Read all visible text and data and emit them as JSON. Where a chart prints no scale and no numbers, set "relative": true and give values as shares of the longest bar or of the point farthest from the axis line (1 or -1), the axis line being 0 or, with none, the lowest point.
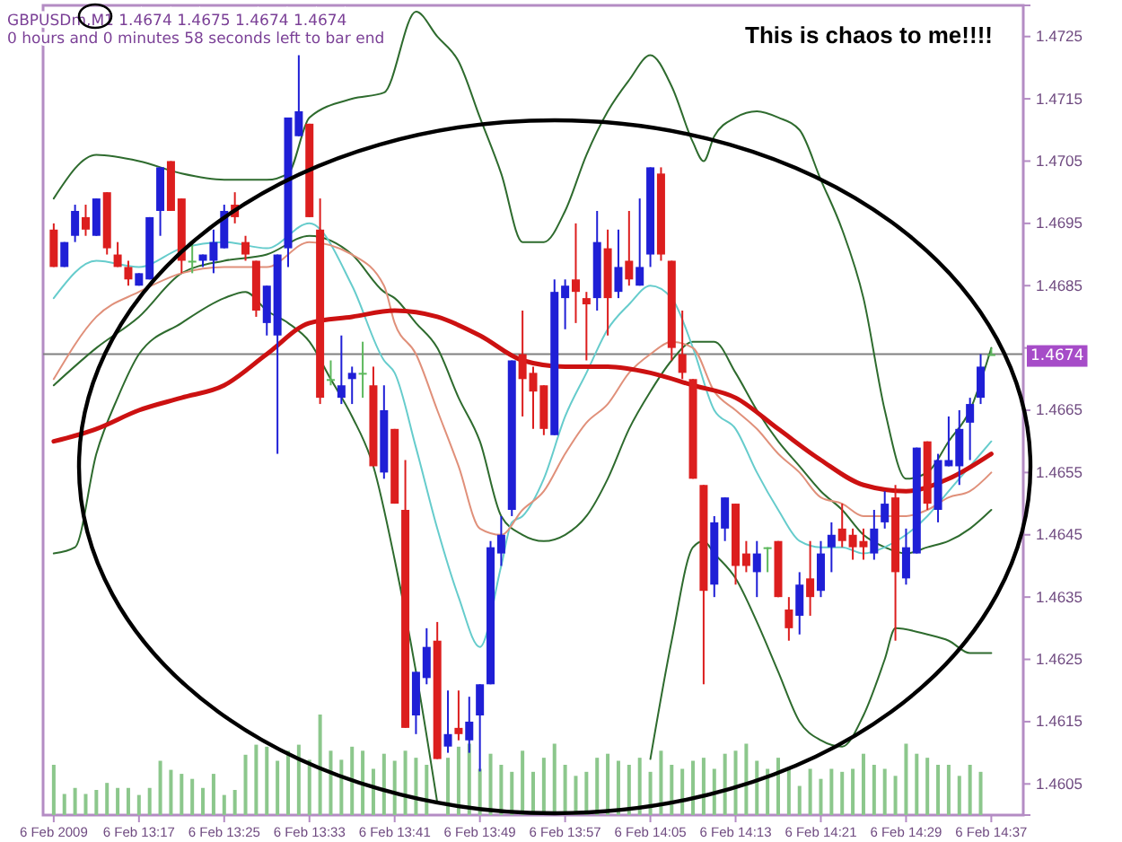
{
  "chart_data": [
    {
      "type": "candlestick",
      "title": "This is chaos to me!!!!",
      "subtitle": "GBPUSDm,M1 1.4674 1.4675 1.4674 1.4674",
      "annotations": [
        "0 hours and 0 minutes 58 seconds left to bar end"
      ],
      "x": [
        "2009-02-06T13:09",
        "2009-02-06T13:10",
        "2009-02-06T13:11",
        "2009-02-06T13:12",
        "2009-02-06T13:13",
        "2009-02-06T13:14",
        "2009-02-06T13:15",
        "2009-02-06T13:16",
        "2009-02-06T13:17",
        "2009-02-06T13:18",
        "2009-02-06T13:19",
        "2009-02-06T13:20",
        "2009-02-06T13:21",
        "2009-02-06T13:22",
        "2009-02-06T13:23",
        "2009-02-06T13:24",
        "2009-02-06T13:25",
        "2009-02-06T13:26",
        "2009-02-06T13:27",
        "2009-02-06T13:28",
        "2009-02-06T13:29",
        "2009-02-06T13:30",
        "2009-02-06T13:31",
        "2009-02-06T13:32",
        "2009-02-06T13:33",
        "2009-02-06T13:34",
        "2009-02-06T13:35",
        "2009-02-06T13:36",
        "2009-02-06T13:37",
        "2009-02-06T13:38",
        "2009-02-06T13:39",
        "2009-02-06T13:40",
        "2009-02-06T13:41",
        "2009-02-06T13:42",
        "2009-02-06T13:43",
        "2009-02-06T13:44",
        "2009-02-06T13:45",
        "2009-02-06T13:46",
        "2009-02-06T13:47",
        "2009-02-06T13:48",
        "2009-02-06T13:49",
        "2009-02-06T13:50",
        "2009-02-06T13:51",
        "2009-02-06T13:52",
        "2009-02-06T13:53",
        "2009-02-06T13:54",
        "2009-02-06T13:55",
        "2009-02-06T13:56",
        "2009-02-06T13:57",
        "2009-02-06T13:58",
        "2009-02-06T13:59",
        "2009-02-06T14:00",
        "2009-02-06T14:01",
        "2009-02-06T14:02",
        "2009-02-06T14:03",
        "2009-02-06T14:04",
        "2009-02-06T14:05",
        "2009-02-06T14:06",
        "2009-02-06T14:07",
        "2009-02-06T14:08",
        "2009-02-06T14:09",
        "2009-02-06T14:10",
        "2009-02-06T14:11",
        "2009-02-06T14:12",
        "2009-02-06T14:13",
        "2009-02-06T14:14",
        "2009-02-06T14:15",
        "2009-02-06T14:16",
        "2009-02-06T14:17",
        "2009-02-06T14:18",
        "2009-02-06T14:19",
        "2009-02-06T14:20",
        "2009-02-06T14:21",
        "2009-02-06T14:22",
        "2009-02-06T14:23",
        "2009-02-06T14:24",
        "2009-02-06T14:25",
        "2009-02-06T14:26",
        "2009-02-06T14:27",
        "2009-02-06T14:28",
        "2009-02-06T14:29",
        "2009-02-06T14:30",
        "2009-02-06T14:31",
        "2009-02-06T14:32",
        "2009-02-06T14:33",
        "2009-02-06T14:34",
        "2009-02-06T14:35",
        "2009-02-06T14:36",
        "2009-02-06T14:37"
      ],
      "ohlc": [
        [
          1.4694,
          1.4695,
          1.4688,
          1.4688
        ],
        [
          1.4688,
          1.4692,
          1.4688,
          1.4692
        ],
        [
          1.4693,
          1.4698,
          1.4692,
          1.4697
        ],
        [
          1.4696,
          1.4698,
          1.4693,
          1.4694
        ],
        [
          1.4693,
          1.4699,
          1.4693,
          1.4699
        ],
        [
          1.47,
          1.47,
          1.469,
          1.4691
        ],
        [
          1.469,
          1.4692,
          1.4688,
          1.4688
        ],
        [
          1.4688,
          1.4689,
          1.4685,
          1.4686
        ],
        [
          1.4685,
          1.4687,
          1.4685,
          1.4687
        ],
        [
          1.4686,
          1.4696,
          1.4686,
          1.4696
        ],
        [
          1.4697,
          1.4704,
          1.4693,
          1.4704
        ],
        [
          1.4705,
          1.4705,
          1.4697,
          1.4697
        ],
        [
          1.4699,
          1.4699,
          1.4687,
          1.4689
        ],
        [
          1.4689,
          1.4692,
          1.4687,
          1.4689
        ],
        [
          1.4689,
          1.469,
          1.4688,
          1.469
        ],
        [
          1.4689,
          1.4694,
          1.4687,
          1.4692
        ],
        [
          1.4691,
          1.4698,
          1.4691,
          1.4697
        ],
        [
          1.4698,
          1.47,
          1.4695,
          1.4696
        ],
        [
          1.4692,
          1.4693,
          1.4689,
          1.469
        ],
        [
          1.4689,
          1.4689,
          1.468,
          1.4681
        ],
        [
          1.4679,
          1.4685,
          1.4677,
          1.4685
        ],
        [
          1.4677,
          1.469,
          1.4658,
          1.469
        ],
        [
          1.4691,
          1.4712,
          1.4688,
          1.4712
        ],
        [
          1.4709,
          1.4722,
          1.4709,
          1.4713
        ],
        [
          1.4711,
          1.4711,
          1.4696,
          1.4696
        ],
        [
          1.4694,
          1.4699,
          1.4666,
          1.4667
        ],
        [
          1.467,
          1.4673,
          1.4669,
          1.467
        ],
        [
          1.4667,
          1.4677,
          1.4666,
          1.4669
        ],
        [
          1.467,
          1.4672,
          1.4666,
          1.4671
        ],
        [
          1.4671,
          1.4676,
          1.4667,
          1.4671
        ],
        [
          1.4669,
          1.4672,
          1.4656,
          1.4656
        ],
        [
          1.4655,
          1.4669,
          1.4654,
          1.4665
        ],
        [
          1.4662,
          1.4662,
          1.465,
          1.465
        ],
        [
          1.4649,
          1.4657,
          1.4614,
          1.4614
        ],
        [
          1.4616,
          1.4623,
          1.4613,
          1.4623
        ],
        [
          1.4622,
          1.463,
          1.4621,
          1.4627
        ],
        [
          1.4628,
          1.4631,
          1.4609,
          1.4609
        ],
        [
          1.4611,
          1.462,
          1.461,
          1.4613
        ],
        [
          1.4614,
          1.462,
          1.4612,
          1.4613
        ],
        [
          1.4612,
          1.4619,
          1.461,
          1.4615
        ],
        [
          1.4616,
          1.4621,
          1.4607,
          1.4621
        ],
        [
          1.4621,
          1.4644,
          1.4621,
          1.4643
        ],
        [
          1.4642,
          1.4648,
          1.464,
          1.4645
        ],
        [
          1.4649,
          1.4673,
          1.4648,
          1.4673
        ],
        [
          1.4674,
          1.4681,
          1.4664,
          1.467
        ],
        [
          1.4671,
          1.4672,
          1.4662,
          1.4668
        ],
        [
          1.4669,
          1.4669,
          1.4661,
          1.4662
        ],
        [
          1.4661,
          1.4686,
          1.4661,
          1.4684
        ],
        [
          1.4683,
          1.4686,
          1.4678,
          1.4685
        ],
        [
          1.4686,
          1.4695,
          1.4679,
          1.4684
        ],
        [
          1.4683,
          1.4684,
          1.4673,
          1.4682
        ],
        [
          1.4683,
          1.4697,
          1.4681,
          1.4692
        ],
        [
          1.4691,
          1.4694,
          1.4677,
          1.4683
        ],
        [
          1.4684,
          1.4694,
          1.4683,
          1.4688
        ],
        [
          1.4689,
          1.4697,
          1.4685,
          1.4686
        ],
        [
          1.4685,
          1.4699,
          1.4685,
          1.4688
        ],
        [
          1.469,
          1.4704,
          1.4688,
          1.4704
        ],
        [
          1.4703,
          1.4704,
          1.4689,
          1.469
        ],
        [
          1.4689,
          1.4689,
          1.4673,
          1.4675
        ],
        [
          1.4674,
          1.4681,
          1.467,
          1.4671
        ],
        [
          1.467,
          1.467,
          1.4654,
          1.4654
        ],
        [
          1.4653,
          1.4653,
          1.4621,
          1.4636
        ],
        [
          1.4637,
          1.4648,
          1.4635,
          1.4647
        ],
        [
          1.4646,
          1.4651,
          1.4644,
          1.4651
        ],
        [
          1.465,
          1.465,
          1.4637,
          1.464
        ],
        [
          1.4642,
          1.4644,
          1.4639,
          1.464
        ],
        [
          1.4639,
          1.4644,
          1.4635,
          1.4642
        ],
        [
          1.4643,
          1.4643,
          1.4639,
          1.4643
        ],
        [
          1.4644,
          1.4644,
          1.4635,
          1.4635
        ],
        [
          1.4633,
          1.4635,
          1.4628,
          1.463
        ],
        [
          1.4632,
          1.4639,
          1.4629,
          1.4637
        ],
        [
          1.4638,
          1.4644,
          1.4632,
          1.4635
        ],
        [
          1.4636,
          1.4644,
          1.4635,
          1.4642
        ],
        [
          1.4643,
          1.4647,
          1.4639,
          1.4645
        ],
        [
          1.4646,
          1.465,
          1.4643,
          1.4644
        ],
        [
          1.4645,
          1.4646,
          1.4641,
          1.4643
        ],
        [
          1.4644,
          1.4646,
          1.4641,
          1.4643
        ],
        [
          1.4642,
          1.4649,
          1.4641,
          1.4646
        ],
        [
          1.4647,
          1.4652,
          1.4646,
          1.465
        ],
        [
          1.4651,
          1.4653,
          1.4628,
          1.4639
        ],
        [
          1.4638,
          1.4646,
          1.4637,
          1.4643
        ],
        [
          1.4642,
          1.4659,
          1.4642,
          1.4659
        ],
        [
          1.466,
          1.466,
          1.4649,
          1.465
        ],
        [
          1.4649,
          1.4658,
          1.4647,
          1.4657
        ],
        [
          1.4656,
          1.4664,
          1.4656,
          1.4657
        ],
        [
          1.4656,
          1.4665,
          1.4653,
          1.4662
        ],
        [
          1.4663,
          1.4667,
          1.4657,
          1.4666
        ],
        [
          1.4667,
          1.4674,
          1.4666,
          1.4672
        ],
        [
          1.4674,
          1.4675,
          1.4674,
          1.4674
        ]
      ],
      "colors": [
        "#dc1e1e",
        "#1f1fd6",
        "#1f1fd6",
        "#dc1e1e",
        "#1f1fd6",
        "#dc1e1e",
        "#dc1e1e",
        "#dc1e1e",
        "#1f1fd6",
        "#1f1fd6",
        "#1f1fd6",
        "#dc1e1e",
        "#dc1e1e",
        "#5cb85c",
        "#1f1fd6",
        "#1f1fd6",
        "#1f1fd6",
        "#dc1e1e",
        "#dc1e1e",
        "#dc1e1e",
        "#1f1fd6",
        "#1f1fd6",
        "#1f1fd6",
        "#1f1fd6",
        "#dc1e1e",
        "#dc1e1e",
        "#5cb85c",
        "#1f1fd6",
        "#1f1fd6",
        "#5cb85c",
        "#dc1e1e",
        "#1f1fd6",
        "#dc1e1e",
        "#dc1e1e",
        "#1f1fd6",
        "#1f1fd6",
        "#dc1e1e",
        "#1f1fd6",
        "#dc1e1e",
        "#1f1fd6",
        "#1f1fd6",
        "#1f1fd6",
        "#1f1fd6",
        "#1f1fd6",
        "#dc1e1e",
        "#dc1e1e",
        "#dc1e1e",
        "#1f1fd6",
        "#1f1fd6",
        "#dc1e1e",
        "#dc1e1e",
        "#1f1fd6",
        "#dc1e1e",
        "#1f1fd6",
        "#dc1e1e",
        "#1f1fd6",
        "#1f1fd6",
        "#dc1e1e",
        "#dc1e1e",
        "#dc1e1e",
        "#dc1e1e",
        "#dc1e1e",
        "#1f1fd6",
        "#1f1fd6",
        "#dc1e1e",
        "#dc1e1e",
        "#1f1fd6",
        "#5cb85c",
        "#dc1e1e",
        "#dc1e1e",
        "#1f1fd6",
        "#dc1e1e",
        "#1f1fd6",
        "#1f1fd6",
        "#dc1e1e",
        "#dc1e1e",
        "#dc1e1e",
        "#1f1fd6",
        "#1f1fd6",
        "#dc1e1e",
        "#1f1fd6",
        "#1f1fd6",
        "#dc1e1e",
        "#1f1fd6",
        "#1f1fd6",
        "#1f1fd6",
        "#1f1fd6",
        "#1f1fd6",
        "#5cb85c"
      ],
      "xlim": [
        "2009-02-06T13:08",
        "2009-02-06T14:40"
      ],
      "xticks": [
        {
          "value": "2009-02-06T13:09",
          "label": "6 Feb 2009"
        },
        {
          "value": "2009-02-06T13:17",
          "label": "6 Feb 13:17"
        },
        {
          "value": "2009-02-06T13:25",
          "label": "6 Feb 13:25"
        },
        {
          "value": "2009-02-06T13:33",
          "label": "6 Feb 13:33"
        },
        {
          "value": "2009-02-06T13:41",
          "label": "6 Feb 13:41"
        },
        {
          "value": "2009-02-06T13:49",
          "label": "6 Feb 13:49"
        },
        {
          "value": "2009-02-06T13:57",
          "label": "6 Feb 13:57"
        },
        {
          "value": "2009-02-06T14:05",
          "label": "6 Feb 14:05"
        },
        {
          "value": "2009-02-06T14:13",
          "label": "6 Feb 14:13"
        },
        {
          "value": "2009-02-06T14:21",
          "label": "6 Feb 14:21"
        },
        {
          "value": "2009-02-06T14:29",
          "label": "6 Feb 14:29"
        },
        {
          "value": "2009-02-06T14:37",
          "label": "6 Feb 14:37"
        }
      ],
      "ylim": [
        1.46,
        1.473
      ],
      "yticks": [
        1.4605,
        1.4615,
        1.4625,
        1.4635,
        1.4645,
        1.4655,
        1.4665,
        {
          "value": 1.4675,
          "label": null
        },
        1.4685,
        1.4695,
        1.4705,
        1.4715,
        1.4725
      ],
      "ref_lines": [
        {
          "axis": "y",
          "value": 1.4674,
          "label": "1.4674",
          "color": "#808080"
        }
      ],
      "series": [
        {
          "type": "line",
          "color": "#2e6b2e",
          "x": [
            "2009-02-06T13:09",
            "2009-02-06T13:13",
            "2009-02-06T13:17",
            "2009-02-06T13:21",
            "2009-02-06T13:25",
            "2009-02-06T13:29",
            "2009-02-06T13:31",
            "2009-02-06T13:33",
            "2009-02-06T13:37",
            "2009-02-06T13:40",
            "2009-02-06T13:43",
            "2009-02-06T13:45",
            "2009-02-06T13:47",
            "2009-02-06T13:49",
            "2009-02-06T13:51",
            "2009-02-06T13:53",
            "2009-02-06T13:55",
            "2009-02-06T13:57",
            "2009-02-06T13:59",
            "2009-02-06T14:01",
            "2009-02-06T14:03",
            "2009-02-06T14:05",
            "2009-02-06T14:07",
            "2009-02-06T14:09",
            "2009-02-06T14:10",
            "2009-02-06T14:11",
            "2009-02-06T14:13",
            "2009-02-06T14:15",
            "2009-02-06T14:17",
            "2009-02-06T14:19",
            "2009-02-06T14:21",
            "2009-02-06T14:23",
            "2009-02-06T14:25",
            "2009-02-06T14:27",
            "2009-02-06T14:29",
            "2009-02-06T14:31",
            "2009-02-06T14:33",
            "2009-02-06T14:35",
            "2009-02-06T14:37"
          ],
          "values": [
            1.4699,
            1.4706,
            1.4705,
            1.4703,
            1.4702,
            1.4702,
            1.4703,
            1.4712,
            1.4715,
            1.4716,
            1.4729,
            1.4725,
            1.4721,
            1.4712,
            1.4703,
            1.4692,
            1.4692,
            1.4697,
            1.4706,
            1.4713,
            1.4718,
            1.4722,
            1.4717,
            1.4708,
            1.4705,
            1.4709,
            1.4712,
            1.4713,
            1.4712,
            1.471,
            1.4702,
            1.4694,
            1.4683,
            1.4665,
            1.4654,
            1.4655,
            1.466,
            1.4665,
            1.4675
          ]
        },
        {
          "type": "line",
          "color": "#2e6b2e",
          "x": [
            "2009-02-06T13:09",
            "2009-02-06T13:13",
            "2009-02-06T13:17",
            "2009-02-06T13:21",
            "2009-02-06T13:25",
            "2009-02-06T13:29",
            "2009-02-06T13:33",
            "2009-02-06T13:37",
            "2009-02-06T13:40",
            "2009-02-06T13:41",
            "2009-02-06T13:43",
            "2009-02-06T13:45",
            "2009-02-06T13:47",
            "2009-02-06T13:49",
            "2009-02-06T13:51",
            "2009-02-06T13:53",
            "2009-02-06T13:55",
            "2009-02-06T13:57",
            "2009-02-06T13:59",
            "2009-02-06T14:01",
            "2009-02-06T14:03",
            "2009-02-06T14:05",
            "2009-02-06T14:07",
            "2009-02-06T14:09",
            "2009-02-06T14:11",
            "2009-02-06T14:13",
            "2009-02-06T14:15",
            "2009-02-06T14:17",
            "2009-02-06T14:19",
            "2009-02-06T14:21",
            "2009-02-06T14:23",
            "2009-02-06T14:25",
            "2009-02-06T14:27",
            "2009-02-06T14:29",
            "2009-02-06T14:31",
            "2009-02-06T14:33",
            "2009-02-06T14:35",
            "2009-02-06T14:37"
          ],
          "values": [
            1.4669,
            1.4675,
            1.468,
            1.4687,
            1.4689,
            1.469,
            1.4693,
            1.469,
            1.4684,
            1.4683,
            1.4679,
            1.4675,
            1.4667,
            1.466,
            1.4648,
            1.4645,
            1.4644,
            1.4645,
            1.4648,
            1.4654,
            1.4662,
            1.4668,
            1.4673,
            1.4676,
            1.4676,
            1.4671,
            1.4665,
            1.466,
            1.4656,
            1.4652,
            1.4649,
            1.4645,
            1.4643,
            1.4642,
            1.4643,
            1.4644,
            1.4646,
            1.4649
          ]
        },
        {
          "type": "line",
          "color": "#2e6b2e",
          "x": [
            "2009-02-06T13:09",
            "2009-02-06T13:11",
            "2009-02-06T13:13",
            "2009-02-06T13:15",
            "2009-02-06T13:17",
            "2009-02-06T13:21",
            "2009-02-06T13:25",
            "2009-02-06T13:27",
            "2009-02-06T13:29",
            "2009-02-06T13:31",
            "2009-02-06T13:33",
            "2009-02-06T13:35",
            "2009-02-06T13:37",
            "2009-02-06T13:39",
            "2009-02-06T13:41",
            "2009-02-06T13:43",
            "2009-02-06T13:45",
            "2009-02-06T13:55",
            "2009-02-06T14:05",
            "2009-02-06T14:07",
            "2009-02-06T14:09",
            "2009-02-06T14:10",
            "2009-02-06T14:11",
            "2009-02-06T14:13",
            "2009-02-06T14:15",
            "2009-02-06T14:17",
            "2009-02-06T14:19",
            "2009-02-06T14:21",
            "2009-02-06T14:23",
            "2009-02-06T14:25",
            "2009-02-06T14:27",
            "2009-02-06T14:28",
            "2009-02-06T14:31",
            "2009-02-06T14:33",
            "2009-02-06T14:35",
            "2009-02-06T14:37"
          ],
          "values": [
            1.4642,
            1.4643,
            1.4658,
            1.4667,
            1.4674,
            1.4679,
            1.4683,
            1.4684,
            1.4681,
            1.4679,
            1.4676,
            1.467,
            1.4664,
            1.4656,
            1.4641,
            1.4623,
            1.4602,
            null,
            1.4609,
            1.4628,
            1.4643,
            1.4644,
            1.4642,
            1.4638,
            1.4631,
            1.4623,
            1.4615,
            1.4612,
            1.4611,
            1.4616,
            1.4625,
            1.463,
            1.4629,
            1.4628,
            1.4626,
            1.4626
          ]
        },
        {
          "type": "line",
          "color": "#66cccc",
          "x": [
            "2009-02-06T13:09",
            "2009-02-06T13:13",
            "2009-02-06T13:17",
            "2009-02-06T13:21",
            "2009-02-06T13:25",
            "2009-02-06T13:29",
            "2009-02-06T13:33",
            "2009-02-06T13:37",
            "2009-02-06T13:40",
            "2009-02-06T13:41",
            "2009-02-06T13:43",
            "2009-02-06T13:45",
            "2009-02-06T13:47",
            "2009-02-06T13:49",
            "2009-02-06T13:51",
            "2009-02-06T13:52",
            "2009-02-06T13:53",
            "2009-02-06T13:55",
            "2009-02-06T13:57",
            "2009-02-06T13:59",
            "2009-02-06T14:01",
            "2009-02-06T14:03",
            "2009-02-06T14:05",
            "2009-02-06T14:07",
            "2009-02-06T14:09",
            "2009-02-06T14:11",
            "2009-02-06T14:13",
            "2009-02-06T14:15",
            "2009-02-06T14:17",
            "2009-02-06T14:19",
            "2009-02-06T14:21",
            "2009-02-06T14:23",
            "2009-02-06T14:25",
            "2009-02-06T14:27",
            "2009-02-06T14:29",
            "2009-02-06T14:31",
            "2009-02-06T14:33",
            "2009-02-06T14:35",
            "2009-02-06T14:37"
          ],
          "values": [
            1.4683,
            1.4689,
            1.4688,
            1.4691,
            1.4692,
            1.4691,
            1.4695,
            1.4685,
            1.4673,
            1.4671,
            1.4659,
            1.4646,
            1.4635,
            1.4627,
            1.464,
            1.4647,
            1.4648,
            1.4654,
            1.4664,
            1.4671,
            1.4678,
            1.4682,
            1.4685,
            1.4683,
            1.4675,
            1.4665,
            1.4662,
            1.4655,
            1.4649,
            1.4644,
            1.4643,
            1.4643,
            1.4642,
            1.4643,
            1.4645,
            1.4648,
            1.4652,
            1.4656,
            1.466
          ]
        },
        {
          "type": "line",
          "color": "#e0907a",
          "x": [
            "2009-02-06T13:09",
            "2009-02-06T13:13",
            "2009-02-06T13:17",
            "2009-02-06T13:21",
            "2009-02-06T13:25",
            "2009-02-06T13:29",
            "2009-02-06T13:33",
            "2009-02-06T13:37",
            "2009-02-06T13:40",
            "2009-02-06T13:41",
            "2009-02-06T13:43",
            "2009-02-06T13:45",
            "2009-02-06T13:47",
            "2009-02-06T13:49",
            "2009-02-06T13:51",
            "2009-02-06T13:53",
            "2009-02-06T13:55",
            "2009-02-06T13:57",
            "2009-02-06T13:59",
            "2009-02-06T14:01",
            "2009-02-06T14:03",
            "2009-02-06T14:05",
            "2009-02-06T14:07",
            "2009-02-06T14:09",
            "2009-02-06T14:11",
            "2009-02-06T14:13",
            "2009-02-06T14:15",
            "2009-02-06T14:17",
            "2009-02-06T14:19",
            "2009-02-06T14:21",
            "2009-02-06T14:23",
            "2009-02-06T14:25",
            "2009-02-06T14:27",
            "2009-02-06T14:29",
            "2009-02-06T14:31",
            "2009-02-06T14:33",
            "2009-02-06T14:35",
            "2009-02-06T14:37"
          ],
          "values": [
            1.467,
            1.468,
            1.4684,
            1.4687,
            1.4688,
            1.4688,
            1.4692,
            1.469,
            1.4685,
            1.4679,
            1.4674,
            1.4665,
            1.4656,
            1.4646,
            1.4645,
            1.4649,
            1.4652,
            1.4658,
            1.4663,
            1.4666,
            1.4671,
            1.4674,
            1.4676,
            1.4675,
            1.4668,
            1.4665,
            1.4662,
            1.4658,
            1.4655,
            1.4651,
            1.465,
            1.4648,
            1.4648,
            1.4648,
            1.4649,
            1.4651,
            1.4652,
            1.4655
          ]
        },
        {
          "type": "line",
          "color": "#cc1111",
          "x": [
            "2009-02-06T13:09",
            "2009-02-06T13:13",
            "2009-02-06T13:17",
            "2009-02-06T13:21",
            "2009-02-06T13:25",
            "2009-02-06T13:29",
            "2009-02-06T13:33",
            "2009-02-06T13:37",
            "2009-02-06T13:41",
            "2009-02-06T13:45",
            "2009-02-06T13:49",
            "2009-02-06T13:53",
            "2009-02-06T13:57",
            "2009-02-06T14:01",
            "2009-02-06T14:05",
            "2009-02-06T14:09",
            "2009-02-06T14:13",
            "2009-02-06T14:17",
            "2009-02-06T14:21",
            "2009-02-06T14:25",
            "2009-02-06T14:29",
            "2009-02-06T14:33",
            "2009-02-06T14:37"
          ],
          "values": [
            1.466,
            1.4662,
            1.4665,
            1.4667,
            1.4669,
            1.4674,
            1.4679,
            1.468,
            1.4681,
            1.468,
            1.4677,
            1.4673,
            1.4672,
            1.4672,
            1.4671,
            1.4669,
            1.4667,
            1.4662,
            1.4657,
            1.4653,
            1.4652,
            1.4654,
            1.4658
          ]
        }
      ]
    },
    {
      "type": "bar",
      "relative": true,
      "color": "#8cc78c",
      "xlim": [
        "2009-02-06T13:08",
        "2009-02-06T14:40"
      ],
      "x": [
        "2009-02-06T13:09",
        "2009-02-06T13:10",
        "2009-02-06T13:11",
        "2009-02-06T13:12",
        "2009-02-06T13:13",
        "2009-02-06T13:14",
        "2009-02-06T13:15",
        "2009-02-06T13:16",
        "2009-02-06T13:17",
        "2009-02-06T13:18",
        "2009-02-06T13:19",
        "2009-02-06T13:20",
        "2009-02-06T13:21",
        "2009-02-06T13:22",
        "2009-02-06T13:23",
        "2009-02-06T13:24",
        "2009-02-06T13:25",
        "2009-02-06T13:26",
        "2009-02-06T13:27",
        "2009-02-06T13:28",
        "2009-02-06T13:29",
        "2009-02-06T13:30",
        "2009-02-06T13:31",
        "2009-02-06T13:32",
        "2009-02-06T13:33",
        "2009-02-06T13:34",
        "2009-02-06T13:35",
        "2009-02-06T13:36",
        "2009-02-06T13:37",
        "2009-02-06T13:38",
        "2009-02-06T13:39",
        "2009-02-06T13:40",
        "2009-02-06T13:41",
        "2009-02-06T13:42",
        "2009-02-06T13:43",
        "2009-02-06T13:44",
        "2009-02-06T13:45",
        "2009-02-06T13:46",
        "2009-02-06T13:47",
        "2009-02-06T13:48",
        "2009-02-06T13:49",
        "2009-02-06T13:50",
        "2009-02-06T13:51",
        "2009-02-06T13:52",
        "2009-02-06T13:53",
        "2009-02-06T13:54",
        "2009-02-06T13:55",
        "2009-02-06T13:56",
        "2009-02-06T13:57",
        "2009-02-06T13:58",
        "2009-02-06T13:59",
        "2009-02-06T14:00",
        "2009-02-06T14:01",
        "2009-02-06T14:02",
        "2009-02-06T14:03",
        "2009-02-06T14:04",
        "2009-02-06T14:05",
        "2009-02-06T14:06",
        "2009-02-06T14:07",
        "2009-02-06T14:08",
        "2009-02-06T14:09",
        "2009-02-06T14:10",
        "2009-02-06T14:11",
        "2009-02-06T14:12",
        "2009-02-06T14:13",
        "2009-02-06T14:14",
        "2009-02-06T14:15",
        "2009-02-06T14:16",
        "2009-02-06T14:17",
        "2009-02-06T14:18",
        "2009-02-06T14:19",
        "2009-02-06T14:20",
        "2009-02-06T14:21",
        "2009-02-06T14:22",
        "2009-02-06T14:23",
        "2009-02-06T14:24",
        "2009-02-06T14:25",
        "2009-02-06T14:26",
        "2009-02-06T14:27",
        "2009-02-06T14:28",
        "2009-02-06T14:29",
        "2009-02-06T14:30",
        "2009-02-06T14:31",
        "2009-02-06T14:32",
        "2009-02-06T14:33",
        "2009-02-06T14:34",
        "2009-02-06T14:35",
        "2009-02-06T14:36"
      ],
      "values": [
        0.5,
        0.21,
        0.27,
        0.21,
        0.25,
        0.32,
        0.27,
        0.27,
        0.2,
        0.27,
        0.54,
        0.45,
        0.41,
        0.36,
        0.27,
        0.41,
        0.2,
        0.25,
        0.6,
        0.7,
        0.68,
        0.54,
        0.64,
        0.7,
        0.55,
        1,
        0.64,
        0.55,
        0.68,
        0.64,
        0.46,
        0.61,
        0.54,
        0.64,
        0.57,
        0.5,
        null,
        0.57,
        0.68,
        0.71,
        0.46,
        0.61,
        0.5,
        0.43,
        0.64,
        0.43,
        0.57,
        0.71,
        0.5,
        0.39,
        0.43,
        0.57,
        0.61,
        0.54,
        0.5,
        0.57,
        0.43,
        0.64,
        0.5,
        0.46,
        0.54,
        0.57,
        0.46,
        0.61,
        0.64,
        0.71,
        0.54,
        0.46,
        0.57,
        0.46,
        0.29,
        0.46,
        0.36,
        0.46,
        0.43,
        0.46,
        0.61,
        0.5,
        0.46,
        0.39,
        0.71,
        0.61,
        0.57,
        0.5,
        0.5,
        0.39,
        0.5,
        0.43
      ]
    }
  ]
}
